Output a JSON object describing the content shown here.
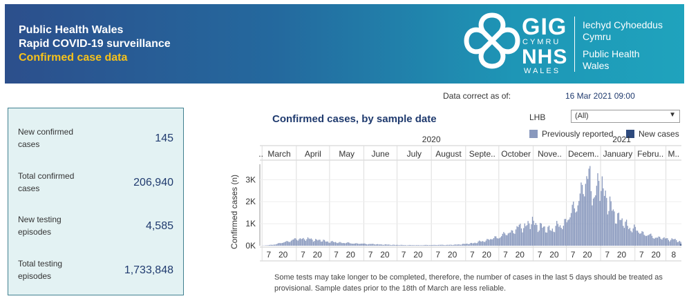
{
  "header": {
    "line1": "Public Health Wales",
    "line2": "Rapid COVID-19 surveillance",
    "line3": "Confirmed case data",
    "logo": {
      "gig": "GIG",
      "cymru": "CYMRU",
      "nhs": "NHS",
      "wales": "WALES",
      "org_welsh_1": "Iechyd Cyhoeddus",
      "org_welsh_2": "Cymru",
      "org_english_1": "Public Health",
      "org_english_2": "Wales"
    }
  },
  "data_correct": {
    "label": "Data correct as of:",
    "value": "16 Mar 2021 09:00"
  },
  "kpis": [
    {
      "label": "New confirmed cases",
      "value": "145"
    },
    {
      "label": "Total confirmed cases",
      "value": "206,940"
    },
    {
      "label": "New testing episodes",
      "value": "4,585"
    },
    {
      "label": "Total testing episodes",
      "value": "1,733,848"
    }
  ],
  "filter": {
    "label": "LHB",
    "value": "(All)"
  },
  "colors": {
    "previous": "#8898bd",
    "new": "#2e4a7d",
    "title": "#1f3a6e"
  },
  "chart_data": {
    "type": "bar",
    "title": "Confirmed cases, by sample date",
    "ylabel": "Confirmed cases (n)",
    "xlabel": "",
    "ylim": [
      0,
      3700
    ],
    "y_ticks": [
      "0K",
      "1K",
      "2K",
      "3K"
    ],
    "years": [
      "2020",
      "2021"
    ],
    "months": [
      "..",
      "March",
      "April",
      "May",
      "June",
      "July",
      "August",
      "Septe..",
      "October",
      "Nove..",
      "Decem..",
      "January",
      "Febru..",
      "M.."
    ],
    "day_ticks": [
      "7",
      "20",
      "7",
      "20",
      "7",
      "20",
      "7",
      "20",
      "7",
      "20",
      "7",
      "20",
      "7",
      "20",
      "7",
      "20",
      "7",
      "20",
      "7",
      "20",
      "7",
      "20",
      "7",
      "20",
      "8"
    ],
    "legend": [
      "Previously reported",
      "New cases"
    ],
    "legend_position": "top-right",
    "grid": true,
    "x_start": "2020-02-28",
    "x_end": "2021-03-15",
    "series": [
      {
        "name": "Previously reported",
        "points": [
          [
            "2020-03-01",
            5
          ],
          [
            "2020-03-10",
            40
          ],
          [
            "2020-03-20",
            150
          ],
          [
            "2020-03-28",
            260
          ],
          [
            "2020-04-05",
            330
          ],
          [
            "2020-04-12",
            300
          ],
          [
            "2020-04-20",
            260
          ],
          [
            "2020-04-28",
            200
          ],
          [
            "2020-05-05",
            160
          ],
          [
            "2020-05-15",
            130
          ],
          [
            "2020-05-25",
            100
          ],
          [
            "2020-06-05",
            80
          ],
          [
            "2020-06-20",
            50
          ],
          [
            "2020-07-05",
            30
          ],
          [
            "2020-07-20",
            25
          ],
          [
            "2020-08-05",
            35
          ],
          [
            "2020-08-20",
            40
          ],
          [
            "2020-09-01",
            80
          ],
          [
            "2020-09-10",
            140
          ],
          [
            "2020-09-20",
            260
          ],
          [
            "2020-09-30",
            400
          ],
          [
            "2020-10-10",
            600
          ],
          [
            "2020-10-20",
            850
          ],
          [
            "2020-10-30",
            1050
          ],
          [
            "2020-11-05",
            950
          ],
          [
            "2020-11-12",
            750
          ],
          [
            "2020-11-20",
            800
          ],
          [
            "2020-11-28",
            1000
          ],
          [
            "2020-12-05",
            1450
          ],
          [
            "2020-12-12",
            2200
          ],
          [
            "2020-12-18",
            2800
          ],
          [
            "2020-12-22",
            3450
          ],
          [
            "2020-12-26",
            1900
          ],
          [
            "2020-12-30",
            3000
          ],
          [
            "2021-01-03",
            2700
          ],
          [
            "2021-01-08",
            1800
          ],
          [
            "2021-01-15",
            1400
          ],
          [
            "2021-01-22",
            1000
          ],
          [
            "2021-01-31",
            750
          ],
          [
            "2021-02-07",
            600
          ],
          [
            "2021-02-14",
            450
          ],
          [
            "2021-02-21",
            380
          ],
          [
            "2021-03-01",
            320
          ],
          [
            "2021-03-08",
            280
          ],
          [
            "2021-03-15",
            150
          ]
        ]
      },
      {
        "name": "New cases",
        "points": [
          [
            "2021-03-15",
            20
          ]
        ]
      }
    ]
  },
  "footnote": "Some tests may take longer to be completed, therefore, the number of cases in the last 5 days should be treated as provisional. Sample dates prior to the 18th of March are less reliable."
}
